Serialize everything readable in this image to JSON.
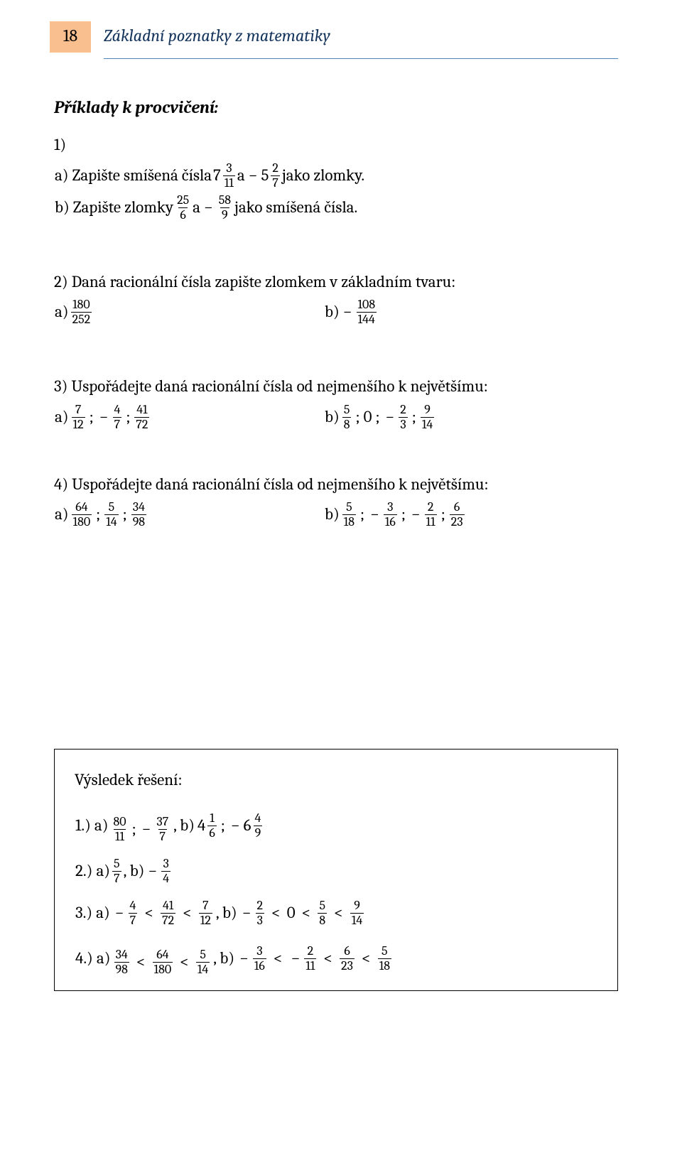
{
  "page_number": "18",
  "header_title": "Základní poznatky z matematiky",
  "colors": {
    "page_box_bg": "#fabf8f",
    "header_text": "#17365d",
    "header_rule": "#4f81bd",
    "body_text": "#000000",
    "background": "#ffffff"
  },
  "typography": {
    "body_font": "Cambria / Georgia serif",
    "body_size_pt": 17,
    "header_size_pt": 18,
    "header_italic": true
  },
  "section_title": "Příklady k procvičení:",
  "problems": {
    "p1": {
      "num": "1)",
      "a_prefix": "a) Zapište smíšená čísla ",
      "a_suffix": " jako zlomky.",
      "a_m1_whole": "7",
      "a_m1_num": "3",
      "a_m1_den": "11",
      "a_conj": " a ",
      "a_m2_sign": "−",
      "a_m2_whole": "5",
      "a_m2_num": "2",
      "a_m2_den": "7",
      "b_prefix": "b) Zapište zlomky ",
      "b_suffix": " jako smíšená čísla.",
      "b_f1_num": "25",
      "b_f1_den": "6",
      "b_conj": " a ",
      "b_f2_sign": "−",
      "b_f2_num": "58",
      "b_f2_den": "9"
    },
    "p2": {
      "text": "2) Daná racionální čísla zapište zlomkem v základním tvaru:",
      "a_label": "a) ",
      "a_num": "180",
      "a_den": "252",
      "b_label": "b) ",
      "b_sign": "−",
      "b_num": "108",
      "b_den": "144"
    },
    "p3": {
      "text": "3) Uspořádejte daná racionální čísla od nejmenšího k největšímu:",
      "a_label": "a) ",
      "a": [
        {
          "sign": "",
          "num": "7",
          "den": "12"
        },
        {
          "sign": "−",
          "num": "4",
          "den": "7"
        },
        {
          "sign": "",
          "num": "41",
          "den": "72"
        }
      ],
      "b_label": "b) ",
      "b": [
        {
          "sign": "",
          "num": "5",
          "den": "8"
        },
        {
          "literal": "0"
        },
        {
          "sign": "−",
          "num": "2",
          "den": "3"
        },
        {
          "sign": "",
          "num": "9",
          "den": "14"
        }
      ]
    },
    "p4": {
      "text": "4) Uspořádejte daná racionální čísla od nejmenšího k největšímu:",
      "a_label": "a) ",
      "a": [
        {
          "sign": "",
          "num": "64",
          "den": "180"
        },
        {
          "sign": "",
          "num": "5",
          "den": "14"
        },
        {
          "sign": "",
          "num": "34",
          "den": "98"
        }
      ],
      "b_label": "b) ",
      "b": [
        {
          "sign": "",
          "num": "5",
          "den": "18"
        },
        {
          "sign": "−",
          "num": "3",
          "den": "16"
        },
        {
          "sign": "−",
          "num": "2",
          "den": "11"
        },
        {
          "sign": "",
          "num": "6",
          "den": "23"
        }
      ]
    }
  },
  "results": {
    "title": "Výsledek řešení:",
    "r1": {
      "label": "1.) a) ",
      "a": [
        {
          "sign": "",
          "num": "80",
          "den": "11"
        },
        {
          "sign": "−",
          "num": "37",
          "den": "7"
        }
      ],
      "mid": ", b) ",
      "b": [
        {
          "whole": "4",
          "num": "1",
          "den": "6"
        },
        {
          "sign": "−",
          "whole": "6",
          "num": "4",
          "den": "9"
        }
      ]
    },
    "r2": {
      "label": "2.) a) ",
      "a": {
        "num": "5",
        "den": "7"
      },
      "mid": ", b) ",
      "b": {
        "sign": "−",
        "num": "3",
        "den": "4"
      }
    },
    "r3": {
      "label": "3.) a) ",
      "a": [
        {
          "sign": "−",
          "num": "4",
          "den": "7"
        },
        {
          "sign": "",
          "num": "41",
          "den": "72"
        },
        {
          "sign": "",
          "num": "7",
          "den": "12"
        }
      ],
      "mid": ", b) ",
      "b": [
        {
          "sign": "−",
          "num": "2",
          "den": "3"
        },
        {
          "literal": "0"
        },
        {
          "sign": "",
          "num": "5",
          "den": "8"
        },
        {
          "sign": "",
          "num": "9",
          "den": "14"
        }
      ]
    },
    "r4": {
      "label": "4.) a) ",
      "a": [
        {
          "sign": "",
          "num": "34",
          "den": "98"
        },
        {
          "sign": "",
          "num": "64",
          "den": "180"
        },
        {
          "sign": "",
          "num": "5",
          "den": "14"
        }
      ],
      "mid": ", b) ",
      "b": [
        {
          "sign": "−",
          "num": "3",
          "den": "16"
        },
        {
          "sign": "−",
          "num": "2",
          "den": "11"
        },
        {
          "sign": "",
          "num": "6",
          "den": "23"
        },
        {
          "sign": "",
          "num": "5",
          "den": "18"
        }
      ]
    }
  },
  "symbols": {
    "sep": " ; ",
    "lt": "<",
    "minus": "−"
  }
}
